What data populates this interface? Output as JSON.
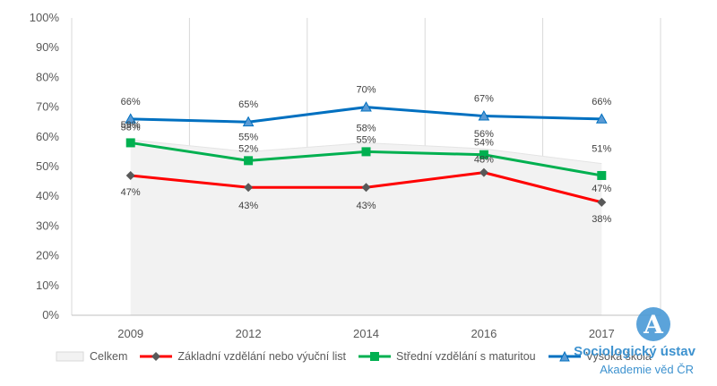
{
  "chart_data": {
    "type": "line",
    "categories": [
      "2009",
      "2012",
      "2014",
      "2016",
      "2017"
    ],
    "ylim": [
      0,
      100
    ],
    "yticks": [
      "0%",
      "10%",
      "20%",
      "30%",
      "40%",
      "50%",
      "60%",
      "70%",
      "80%",
      "90%",
      "100%"
    ],
    "grid": "vertical",
    "legend_position": "bottom",
    "series": [
      {
        "name": "Celkem",
        "kind": "area",
        "color": "#f2f2f2",
        "values": [
          59,
          55,
          58,
          56,
          51
        ],
        "labels": [
          "59%",
          "55%",
          "58%",
          "56%",
          "51%"
        ]
      },
      {
        "name": "Základní vzdělání nebo výuční list",
        "kind": "line",
        "color": "#ff0000",
        "marker": "diamond",
        "marker_color": "#595959",
        "values": [
          47,
          43,
          43,
          48,
          38
        ],
        "labels": [
          "47%",
          "43%",
          "43%",
          "48%",
          "38%"
        ]
      },
      {
        "name": "Střední vzdělání s maturitou",
        "kind": "line",
        "color": "#00b050",
        "marker": "square",
        "marker_color": "#00b050",
        "values": [
          58,
          52,
          55,
          54,
          47
        ],
        "labels": [
          "58%",
          "52%",
          "55%",
          "54%",
          "47%"
        ]
      },
      {
        "name": "Vysoká škola",
        "kind": "line",
        "color": "#0070c0",
        "marker": "triangle",
        "marker_color": "#5b9bd5",
        "values": [
          66,
          65,
          70,
          67,
          66
        ],
        "labels": [
          "66%",
          "65%",
          "70%",
          "67%",
          "66%"
        ]
      }
    ]
  },
  "logo": {
    "mark": "A",
    "line1": "Sociologický ústav",
    "line2": "Akademie věd ČR",
    "color": "#3d92cf"
  }
}
